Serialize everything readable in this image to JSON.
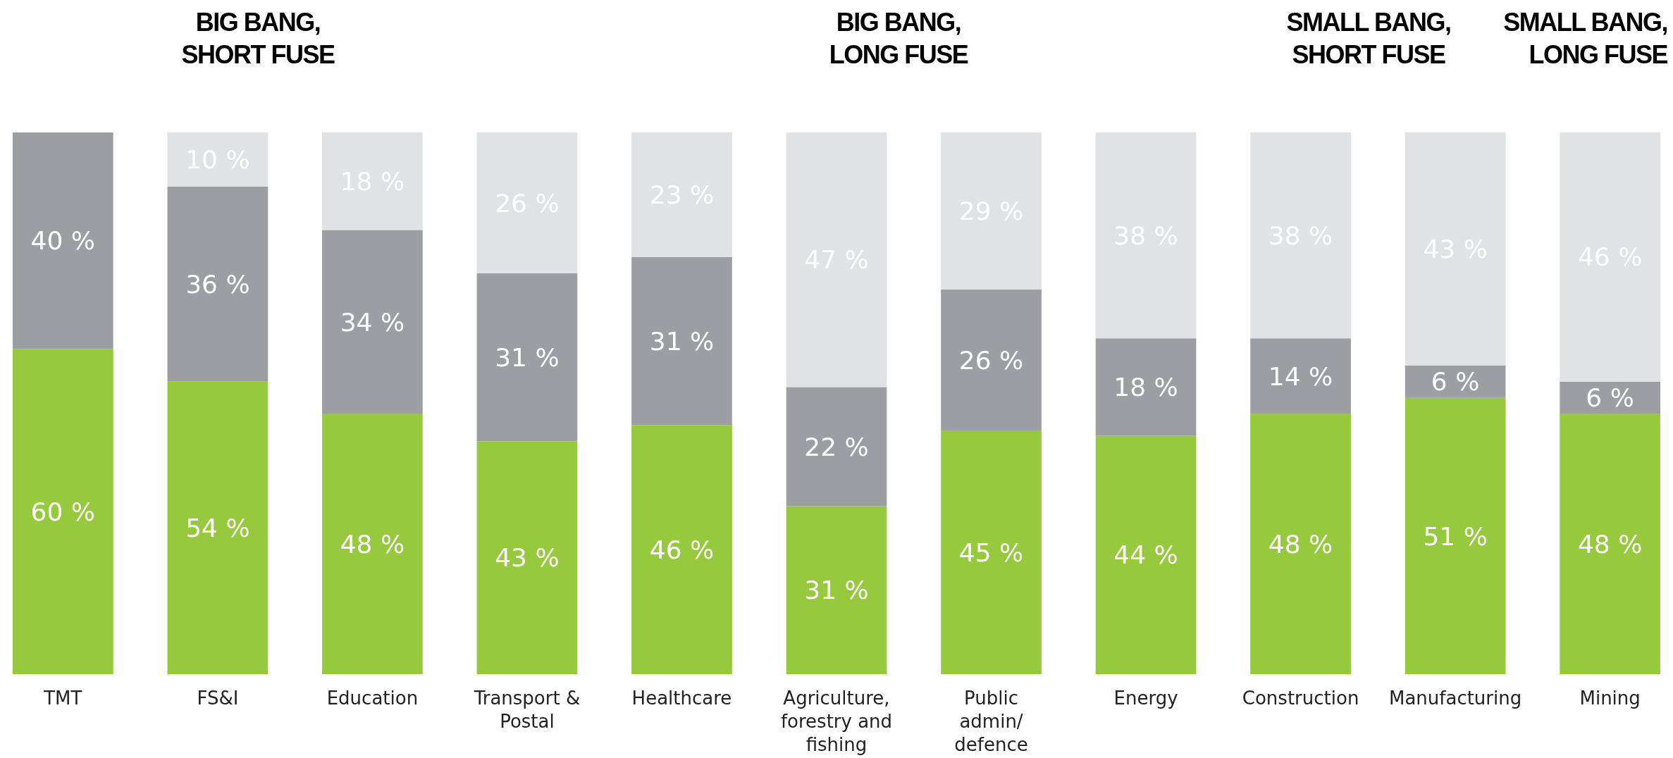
{
  "chart_data": {
    "type": "bar",
    "stacked": true,
    "categories": [
      "TMT",
      "FS&I",
      "Education",
      "Transport & Postal",
      "Healthcare",
      "Agriculture, forestry and fishing",
      "Public admin/ defence",
      "Energy",
      "Construction",
      "Manufacturing",
      "Mining"
    ],
    "series": [
      {
        "color": "#96c93d",
        "values": [
          60,
          54,
          48,
          43,
          46,
          31,
          45,
          44,
          48,
          51,
          48
        ],
        "value_labels": [
          "60 %",
          "54 %",
          "48 %",
          "43 %",
          "46 %",
          "31 %",
          "45 %",
          "44 %",
          "48 %",
          "51 %",
          "48 %"
        ]
      },
      {
        "color": "#9d9ea2",
        "values": [
          40,
          36,
          34,
          31,
          31,
          22,
          26,
          18,
          14,
          6,
          6
        ],
        "value_labels": [
          "40 %",
          "36 %",
          "34 %",
          "31 %",
          "31 %",
          "22 %",
          "26 %",
          "18 %",
          "14 %",
          "6 %",
          "6 %"
        ]
      },
      {
        "color": "#e1e2e3",
        "values": [
          null,
          10,
          18,
          26,
          23,
          47,
          29,
          38,
          38,
          43,
          46
        ],
        "value_labels": [
          null,
          "10 %",
          "18 %",
          "26 %",
          "23 %",
          "47 %",
          "29 %",
          "38 %",
          "38 %",
          "43 %",
          "46 %"
        ]
      }
    ],
    "annotations": [
      "BIG BANG,\nSHORT FUSE",
      "BIG BANG,\nLONG FUSE",
      "SMALL BANG,\nSHORT FUSE",
      "SMALL BANG,\nLONG FUSE"
    ]
  }
}
